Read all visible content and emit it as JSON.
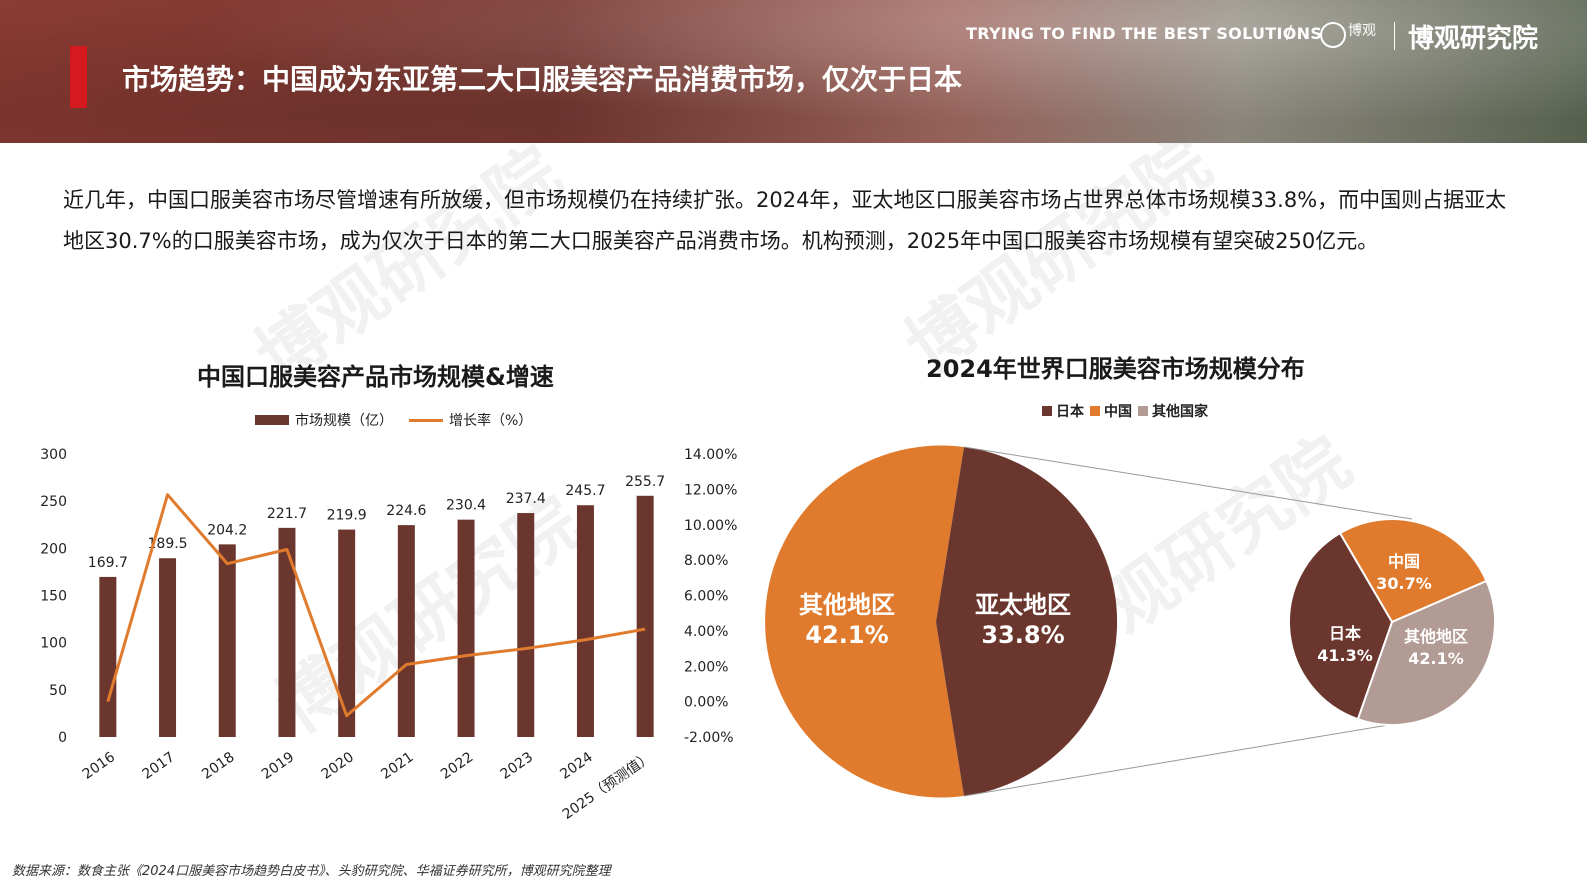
{
  "header": {
    "title": "市场趋势：中国成为东亚第二大口服美容产品消费市场，仅次于日本",
    "slogan": "TRYING TO FIND THE BEST SOLUTIONS",
    "slash": "/",
    "logo_small": "博观",
    "brand": "博观研究院"
  },
  "intro": "近几年，中国口服美容市场尽管增速有所放缓，但市场规模仍在持续扩张。2024年，亚太地区口服美容市场占世界总体市场规模33.8%，而中国则占据亚太地区30.7%的口服美容市场，成为仅次于日本的第二大口服美容产品消费市场。机构预测，2025年中国口服美容市场规模有望突破250亿元。",
  "watermark": "博观研究院",
  "source": "数据来源：数食主张《2024口服美容市场趋势白皮书》、头豹研究院、华福证券研究所，博观研究院整理",
  "colors": {
    "bar": "#6b362d",
    "line": "#e07b2d",
    "japan": "#6b362d",
    "china": "#e07b2d",
    "others": "#b29b94",
    "accent_red": "#d6181f"
  },
  "chart_data": [
    {
      "type": "bar",
      "title": "中国口服美容产品市场规模&增速",
      "categories": [
        "2016",
        "2017",
        "2018",
        "2019",
        "2020",
        "2021",
        "2022",
        "2023",
        "2024",
        "2025（预测值）"
      ],
      "series": [
        {
          "name": "市场规模（亿）",
          "type": "bar",
          "values": [
            169.7,
            189.5,
            204.2,
            221.7,
            219.9,
            224.6,
            230.4,
            237.4,
            245.7,
            255.7
          ],
          "labels": [
            "169.7",
            "189.5",
            "204.2",
            "221.7",
            "219.9",
            "224.6",
            "230.4",
            "237.4",
            "245.7",
            "255.7"
          ]
        },
        {
          "name": "增长率（%）",
          "type": "line",
          "axis": "right",
          "values": [
            0.0,
            11.7,
            7.8,
            8.6,
            -0.8,
            2.1,
            2.6,
            3.0,
            3.5,
            4.1
          ]
        }
      ],
      "ylim": [
        0,
        300
      ],
      "yticks": [
        "0",
        "50",
        "100",
        "150",
        "200",
        "250",
        "300"
      ],
      "y2lim": [
        -2,
        14
      ],
      "y2ticks": [
        "-2.00%",
        "0.00%",
        "2.00%",
        "4.00%",
        "6.00%",
        "8.00%",
        "10.00%",
        "12.00%",
        "14.00%"
      ],
      "legend_position": "top"
    },
    {
      "type": "pie",
      "title": "2024年世界口服美容市场规模分布",
      "legend": [
        "日本",
        "中国",
        "其他国家"
      ],
      "main": {
        "slices": [
          {
            "label": "其他地区",
            "value": 42.1,
            "pct": "42.1%"
          },
          {
            "label": "亚太地区",
            "value": 33.8,
            "pct": "33.8%"
          }
        ]
      },
      "breakdown": {
        "slices": [
          {
            "label": "中国",
            "value": 30.7,
            "pct": "30.7%"
          },
          {
            "label": "其他地区",
            "value": 42.1,
            "pct": "42.1%"
          },
          {
            "label": "日本",
            "value": 41.3,
            "pct": "41.3%"
          }
        ]
      },
      "legend_position": "top"
    }
  ]
}
